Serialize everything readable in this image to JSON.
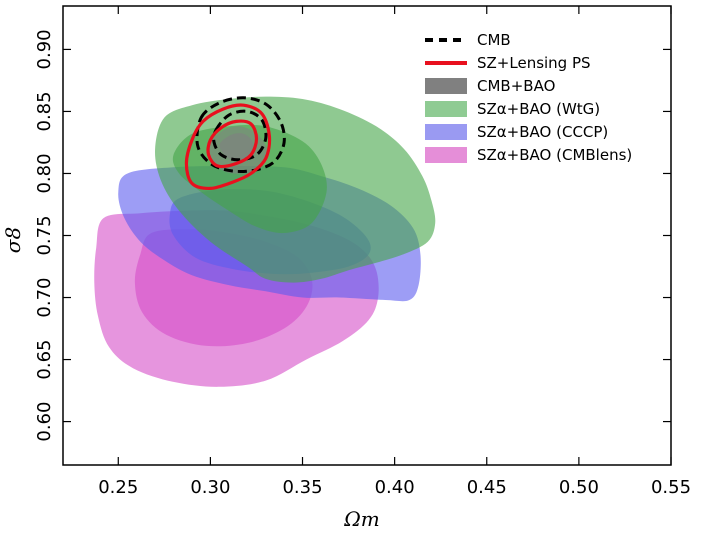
{
  "chart_data": {
    "type": "contour",
    "xlabel": "Ωm",
    "ylabel": "σ8",
    "xlim": [
      0.22,
      0.55
    ],
    "ylim": [
      0.565,
      0.935
    ],
    "xticks": [
      "0.25",
      "0.30",
      "0.35",
      "0.40",
      "0.45",
      "0.50",
      "0.55"
    ],
    "yticks": [
      "0.60",
      "0.65",
      "0.70",
      "0.75",
      "0.80",
      "0.85",
      "0.90"
    ],
    "legend_position": "top-right",
    "legend": [
      {
        "label": "CMB",
        "style": "dashed",
        "color": "#000000"
      },
      {
        "label": "SZ+Lensing PS",
        "style": "line",
        "color": "#e8101e"
      },
      {
        "label": "CMB+BAO",
        "style": "fill",
        "color": "#808080"
      },
      {
        "label": "SZα+BAO (WtG)",
        "style": "fill",
        "color": "#8fcb93"
      },
      {
        "label": "SZα+BAO (CCCP)",
        "style": "fill",
        "color": "#9a9af2"
      },
      {
        "label": "SZα+BAO (CMBlens)",
        "style": "fill",
        "color": "#e58ed8"
      }
    ],
    "series": [
      {
        "name": "SZα+BAO (CMBlens)",
        "color": "#d64fc8",
        "contours": [
          {
            "level": "outer",
            "opacity": 0.6,
            "points": [
              [
                0.242,
                0.764
              ],
              [
                0.262,
                0.768
              ],
              [
                0.286,
                0.77
              ],
              [
                0.31,
                0.77
              ],
              [
                0.33,
                0.766
              ],
              [
                0.35,
                0.76
              ],
              [
                0.37,
                0.75
              ],
              [
                0.383,
                0.738
              ],
              [
                0.39,
                0.722
              ],
              [
                0.391,
                0.7
              ],
              [
                0.386,
                0.682
              ],
              [
                0.372,
                0.665
              ],
              [
                0.352,
                0.65
              ],
              [
                0.33,
                0.633
              ],
              [
                0.305,
                0.628
              ],
              [
                0.28,
                0.632
              ],
              [
                0.258,
                0.643
              ],
              [
                0.245,
                0.66
              ],
              [
                0.239,
                0.685
              ],
              [
                0.237,
                0.712
              ],
              [
                0.238,
                0.74
              ]
            ]
          },
          {
            "level": "inner",
            "opacity": 0.6,
            "points": [
              [
                0.268,
                0.752
              ],
              [
                0.29,
                0.755
              ],
              [
                0.31,
                0.752
              ],
              [
                0.33,
                0.745
              ],
              [
                0.347,
                0.733
              ],
              [
                0.355,
                0.715
              ],
              [
                0.353,
                0.695
              ],
              [
                0.342,
                0.677
              ],
              [
                0.322,
                0.664
              ],
              [
                0.298,
                0.661
              ],
              [
                0.276,
                0.67
              ],
              [
                0.263,
                0.688
              ],
              [
                0.259,
                0.712
              ],
              [
                0.262,
                0.735
              ]
            ]
          }
        ]
      },
      {
        "name": "SZα+BAO (CCCP)",
        "color": "#5b5bee",
        "contours": [
          {
            "level": "outer",
            "opacity": 0.6,
            "points": [
              [
                0.255,
                0.8
              ],
              [
                0.28,
                0.805
              ],
              [
                0.31,
                0.806
              ],
              [
                0.34,
                0.805
              ],
              [
                0.36,
                0.798
              ],
              [
                0.38,
                0.788
              ],
              [
                0.398,
                0.774
              ],
              [
                0.41,
                0.756
              ],
              [
                0.414,
                0.735
              ],
              [
                0.413,
                0.71
              ],
              [
                0.408,
                0.698
              ],
              [
                0.395,
                0.698
              ],
              [
                0.37,
                0.7
              ],
              [
                0.35,
                0.7
              ],
              [
                0.33,
                0.705
              ],
              [
                0.31,
                0.71
              ],
              [
                0.29,
                0.718
              ],
              [
                0.275,
                0.73
              ],
              [
                0.262,
                0.745
              ],
              [
                0.253,
                0.765
              ],
              [
                0.25,
                0.785
              ]
            ]
          },
          {
            "level": "inner",
            "opacity": 0.6,
            "points": [
              [
                0.283,
                0.78
              ],
              [
                0.305,
                0.787
              ],
              [
                0.33,
                0.786
              ],
              [
                0.352,
                0.778
              ],
              [
                0.372,
                0.765
              ],
              [
                0.385,
                0.748
              ],
              [
                0.386,
                0.735
              ],
              [
                0.375,
                0.725
              ],
              [
                0.355,
                0.72
              ],
              [
                0.335,
                0.719
              ],
              [
                0.312,
                0.723
              ],
              [
                0.292,
                0.732
              ],
              [
                0.28,
                0.75
              ],
              [
                0.278,
                0.767
              ]
            ]
          }
        ]
      },
      {
        "name": "SZα+BAO (WtG)",
        "color": "#45a548",
        "contours": [
          {
            "level": "outer",
            "opacity": 0.6,
            "points": [
              [
                0.27,
                0.82
              ],
              [
                0.275,
                0.845
              ],
              [
                0.29,
                0.855
              ],
              [
                0.31,
                0.86
              ],
              [
                0.33,
                0.862
              ],
              [
                0.35,
                0.86
              ],
              [
                0.37,
                0.852
              ],
              [
                0.39,
                0.838
              ],
              [
                0.405,
                0.82
              ],
              [
                0.415,
                0.798
              ],
              [
                0.42,
                0.778
              ],
              [
                0.422,
                0.76
              ],
              [
                0.418,
                0.745
              ],
              [
                0.405,
                0.735
              ],
              [
                0.39,
                0.728
              ],
              [
                0.375,
                0.722
              ],
              [
                0.36,
                0.715
              ],
              [
                0.345,
                0.712
              ],
              [
                0.33,
                0.715
              ],
              [
                0.32,
                0.725
              ],
              [
                0.3,
                0.745
              ],
              [
                0.283,
                0.77
              ],
              [
                0.273,
                0.795
              ]
            ]
          },
          {
            "level": "inner",
            "opacity": 0.6,
            "points": [
              [
                0.28,
                0.815
              ],
              [
                0.29,
                0.832
              ],
              [
                0.31,
                0.838
              ],
              [
                0.33,
                0.838
              ],
              [
                0.35,
                0.826
              ],
              [
                0.36,
                0.808
              ],
              [
                0.363,
                0.785
              ],
              [
                0.355,
                0.76
              ],
              [
                0.34,
                0.752
              ],
              [
                0.325,
                0.757
              ],
              [
                0.31,
                0.77
              ],
              [
                0.295,
                0.785
              ],
              [
                0.283,
                0.8
              ]
            ]
          }
        ]
      },
      {
        "name": "CMB+BAO",
        "color": "#808080",
        "contours": [
          {
            "level": "outer",
            "opacity": 0.6,
            "points": [
              [
                0.298,
                0.82
              ],
              [
                0.306,
                0.834
              ],
              [
                0.316,
                0.838
              ],
              [
                0.326,
                0.831
              ],
              [
                0.331,
                0.818
              ],
              [
                0.328,
                0.806
              ],
              [
                0.318,
                0.8
              ],
              [
                0.306,
                0.803
              ]
            ]
          },
          {
            "level": "inner",
            "opacity": 0.6,
            "points": [
              [
                0.305,
                0.823
              ],
              [
                0.311,
                0.831
              ],
              [
                0.318,
                0.832
              ],
              [
                0.323,
                0.825
              ],
              [
                0.322,
                0.815
              ],
              [
                0.316,
                0.81
              ],
              [
                0.309,
                0.813
              ]
            ]
          }
        ]
      },
      {
        "name": "CMB",
        "color": "#000000",
        "style": "dashed",
        "contours": [
          {
            "level": "outer",
            "points": [
              [
                0.295,
                0.845
              ],
              [
                0.305,
                0.857
              ],
              [
                0.318,
                0.861
              ],
              [
                0.33,
                0.856
              ],
              [
                0.338,
                0.842
              ],
              [
                0.34,
                0.825
              ],
              [
                0.335,
                0.81
              ],
              [
                0.325,
                0.803
              ],
              [
                0.312,
                0.802
              ],
              [
                0.3,
                0.808
              ],
              [
                0.293,
                0.823
              ]
            ]
          },
          {
            "level": "inner",
            "points": [
              [
                0.303,
                0.835
              ],
              [
                0.31,
                0.847
              ],
              [
                0.32,
                0.85
              ],
              [
                0.328,
                0.843
              ],
              [
                0.33,
                0.828
              ],
              [
                0.325,
                0.815
              ],
              [
                0.315,
                0.811
              ],
              [
                0.306,
                0.815
              ],
              [
                0.302,
                0.825
              ]
            ]
          }
        ]
      },
      {
        "name": "SZ+Lensing PS",
        "color": "#e8101e",
        "style": "line",
        "contours": [
          {
            "level": "outer",
            "points": [
              [
                0.29,
                0.827
              ],
              [
                0.296,
                0.842
              ],
              [
                0.307,
                0.852
              ],
              [
                0.318,
                0.855
              ],
              [
                0.328,
                0.848
              ],
              [
                0.332,
                0.83
              ],
              [
                0.33,
                0.812
              ],
              [
                0.322,
                0.8
              ],
              [
                0.312,
                0.793
              ],
              [
                0.3,
                0.788
              ],
              [
                0.29,
                0.792
              ],
              [
                0.287,
                0.808
              ]
            ]
          },
          {
            "level": "inner",
            "points": [
              [
                0.3,
                0.827
              ],
              [
                0.306,
                0.837
              ],
              [
                0.314,
                0.842
              ],
              [
                0.322,
                0.84
              ],
              [
                0.325,
                0.828
              ],
              [
                0.322,
                0.815
              ],
              [
                0.314,
                0.808
              ],
              [
                0.304,
                0.806
              ],
              [
                0.299,
                0.815
              ]
            ]
          }
        ]
      }
    ]
  }
}
